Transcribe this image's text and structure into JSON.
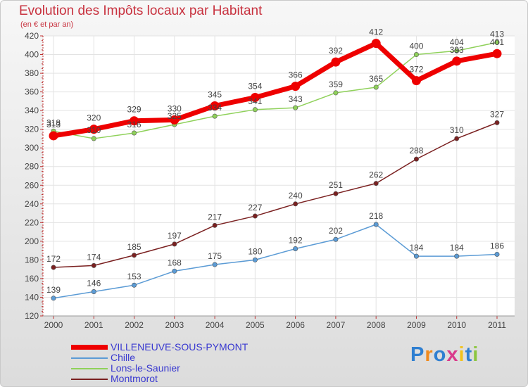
{
  "chart_data": {
    "type": "line",
    "title": "Evolution des Impôts locaux par Habitant",
    "subtitle": "(en € et par an)",
    "x": [
      "2000",
      "2001",
      "2002",
      "2003",
      "2004",
      "2005",
      "2006",
      "2007",
      "2008",
      "2009",
      "2010",
      "2011"
    ],
    "ylim": [
      120,
      420
    ],
    "yticks": [
      120,
      140,
      160,
      180,
      200,
      220,
      240,
      260,
      280,
      300,
      320,
      340,
      360,
      380,
      400,
      420
    ],
    "grid": true,
    "legend_position": "bottom-left",
    "series": [
      {
        "name": "VILLENEUVE-SOUS-PYMONT",
        "color": "#ee0000",
        "values": [
          313,
          320,
          329,
          330,
          345,
          354,
          366,
          392,
          412,
          372,
          393,
          401
        ]
      },
      {
        "name": "Chille",
        "color": "#5b9bd5",
        "values": [
          139,
          146,
          153,
          168,
          175,
          180,
          192,
          202,
          218,
          184,
          184,
          186
        ]
      },
      {
        "name": "Lons-le-Saunier",
        "color": "#8fd15a",
        "values": [
          318,
          310,
          316,
          325,
          334,
          341,
          343,
          359,
          365,
          400,
          404,
          413
        ]
      },
      {
        "name": "Montmorot",
        "color": "#7a2020",
        "values": [
          172,
          174,
          185,
          197,
          217,
          227,
          240,
          251,
          262,
          288,
          310,
          327
        ]
      }
    ]
  },
  "logo": {
    "letters": [
      "P",
      "r",
      "o",
      "x",
      "i",
      "t",
      "i"
    ],
    "colors": [
      "#2f7fd1",
      "#f08a1d",
      "#2f7fd1",
      "#d93a8b",
      "#f2c21a",
      "#2f7fd1",
      "#8cc63f"
    ]
  },
  "colors": {
    "title": "#c8323f",
    "grid": "#e3e3e3",
    "axis": "#bf3030",
    "tick_label": "#444444"
  }
}
